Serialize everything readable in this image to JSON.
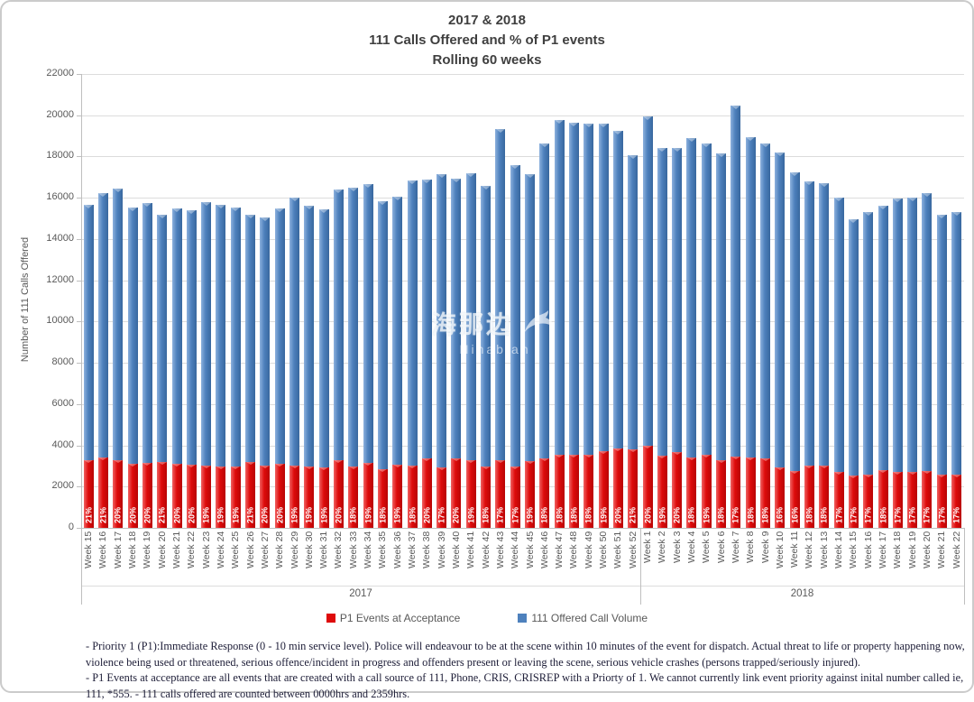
{
  "chart_data": {
    "type": "bar",
    "stacked": true,
    "title_lines": [
      "2017 & 2018",
      "111 Calls Offered and % of P1 events",
      "Rolling 60 weeks"
    ],
    "ylabel": "Number of 111 Calls Offered",
    "ylim": [
      0,
      22000
    ],
    "ytick_step": 2000,
    "grid": true,
    "legend_position": "bottom",
    "legend": [
      {
        "label": "P1 Events at Acceptance",
        "color": "#de0b0b"
      },
      {
        "label": "111 Offered Call Volume",
        "color": "#4e81bd"
      }
    ],
    "note": "Bar top = total 111 offered call volume; red segment = P1 events at acceptance (pct label shown in red segment, red value = pct of total)",
    "groups": [
      {
        "year": "2017",
        "weeks": [
          {
            "label": "Week 15",
            "total": 15650,
            "p1_pct": 21
          },
          {
            "label": "Week 16",
            "total": 16250,
            "p1_pct": 21
          },
          {
            "label": "Week 17",
            "total": 16450,
            "p1_pct": 20
          },
          {
            "label": "Week 18",
            "total": 15550,
            "p1_pct": 20
          },
          {
            "label": "Week 19",
            "total": 15750,
            "p1_pct": 20
          },
          {
            "label": "Week 20",
            "total": 15200,
            "p1_pct": 21
          },
          {
            "label": "Week 21",
            "total": 15500,
            "p1_pct": 20
          },
          {
            "label": "Week 22",
            "total": 15400,
            "p1_pct": 20
          },
          {
            "label": "Week 23",
            "total": 15800,
            "p1_pct": 19
          },
          {
            "label": "Week 24",
            "total": 15650,
            "p1_pct": 19
          },
          {
            "label": "Week 25",
            "total": 15550,
            "p1_pct": 19
          },
          {
            "label": "Week 26",
            "total": 15200,
            "p1_pct": 21
          },
          {
            "label": "Week 27",
            "total": 15050,
            "p1_pct": 20
          },
          {
            "label": "Week 28",
            "total": 15500,
            "p1_pct": 20
          },
          {
            "label": "Week 29",
            "total": 16000,
            "p1_pct": 19
          },
          {
            "label": "Week 30",
            "total": 15600,
            "p1_pct": 19
          },
          {
            "label": "Week 31",
            "total": 15450,
            "p1_pct": 19
          },
          {
            "label": "Week 32",
            "total": 16400,
            "p1_pct": 20
          },
          {
            "label": "Week 33",
            "total": 16500,
            "p1_pct": 18
          },
          {
            "label": "Week 34",
            "total": 16650,
            "p1_pct": 19
          },
          {
            "label": "Week 35",
            "total": 15850,
            "p1_pct": 18
          },
          {
            "label": "Week 36",
            "total": 16050,
            "p1_pct": 19
          },
          {
            "label": "Week 37",
            "total": 16850,
            "p1_pct": 18
          },
          {
            "label": "Week 38",
            "total": 16900,
            "p1_pct": 20
          },
          {
            "label": "Week 39",
            "total": 17150,
            "p1_pct": 17
          },
          {
            "label": "Week 40",
            "total": 16950,
            "p1_pct": 20
          },
          {
            "label": "Week 41",
            "total": 17200,
            "p1_pct": 19
          },
          {
            "label": "Week 42",
            "total": 16600,
            "p1_pct": 18
          },
          {
            "label": "Week 43",
            "total": 19350,
            "p1_pct": 17
          },
          {
            "label": "Week 44",
            "total": 17600,
            "p1_pct": 17
          },
          {
            "label": "Week 45",
            "total": 17150,
            "p1_pct": 19
          },
          {
            "label": "Week 46",
            "total": 18650,
            "p1_pct": 18
          },
          {
            "label": "Week 47",
            "total": 19750,
            "p1_pct": 18
          },
          {
            "label": "Week 48",
            "total": 19650,
            "p1_pct": 18
          },
          {
            "label": "Week 49",
            "total": 19600,
            "p1_pct": 18
          },
          {
            "label": "Week 50",
            "total": 19600,
            "p1_pct": 19
          },
          {
            "label": "Week 51",
            "total": 19250,
            "p1_pct": 20
          },
          {
            "label": "Week 52",
            "total": 18050,
            "p1_pct": 21
          }
        ]
      },
      {
        "year": "2018",
        "weeks": [
          {
            "label": "Week 1",
            "total": 19950,
            "p1_pct": 20
          },
          {
            "label": "Week 2",
            "total": 18400,
            "p1_pct": 19
          },
          {
            "label": "Week 3",
            "total": 18400,
            "p1_pct": 20
          },
          {
            "label": "Week 4",
            "total": 18900,
            "p1_pct": 18
          },
          {
            "label": "Week 5",
            "total": 18650,
            "p1_pct": 19
          },
          {
            "label": "Week 6",
            "total": 18150,
            "p1_pct": 18
          },
          {
            "label": "Week 7",
            "total": 20450,
            "p1_pct": 17
          },
          {
            "label": "Week 8",
            "total": 18950,
            "p1_pct": 18
          },
          {
            "label": "Week 9",
            "total": 18650,
            "p1_pct": 18
          },
          {
            "label": "Week 10",
            "total": 18200,
            "p1_pct": 16
          },
          {
            "label": "Week 11",
            "total": 17250,
            "p1_pct": 16
          },
          {
            "label": "Week 12",
            "total": 16800,
            "p1_pct": 18
          },
          {
            "label": "Week 13",
            "total": 16700,
            "p1_pct": 18
          },
          {
            "label": "Week 14",
            "total": 16000,
            "p1_pct": 17
          },
          {
            "label": "Week 15",
            "total": 14950,
            "p1_pct": 17
          },
          {
            "label": "Week 16",
            "total": 15300,
            "p1_pct": 17
          },
          {
            "label": "Week 17",
            "total": 15600,
            "p1_pct": 18
          },
          {
            "label": "Week 18",
            "total": 15950,
            "p1_pct": 17
          },
          {
            "label": "Week 19",
            "total": 16000,
            "p1_pct": 17
          },
          {
            "label": "Week 20",
            "total": 16250,
            "p1_pct": 17
          },
          {
            "label": "Week 21",
            "total": 15200,
            "p1_pct": 17
          },
          {
            "label": "Week 22",
            "total": 15300,
            "p1_pct": 17
          }
        ]
      }
    ]
  },
  "watermark": {
    "cjk": "海那边",
    "latin": "Hinabian"
  },
  "footnotes": [
    "- Priority 1 (P1):Immediate Response (0 - 10 min service level). Police will endeavour to be at the scene within 10 minutes of the event for dispatch. Actual threat to life or property happening now, violence being used or threatened, serious offence/incident in progress and offenders present or leaving the scene, serious vehicle crashes (persons trapped/seriously injured).",
    "- P1 Events at acceptance are all events that are created with a call source of 111, Phone, CRIS, CRISREP with a Priorty of 1. We cannot currently link event priority against inital number called ie, 111, *555. - 111 calls offered are counted between 0000hrs and 2359hrs."
  ]
}
